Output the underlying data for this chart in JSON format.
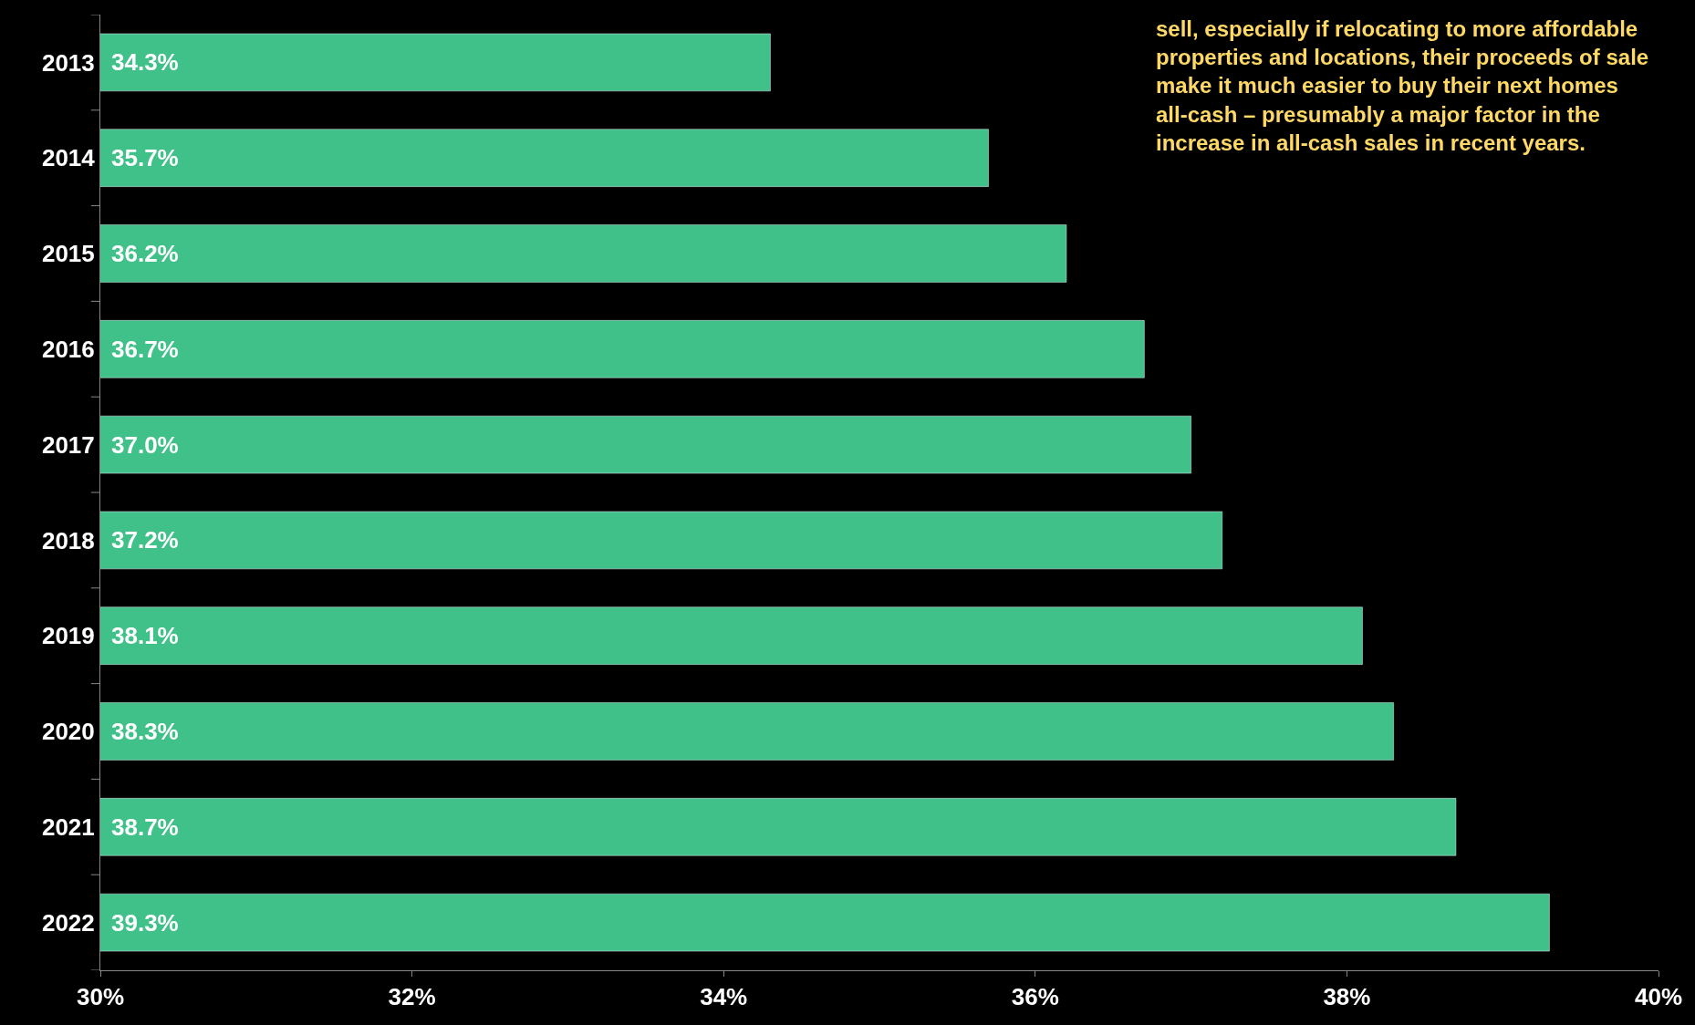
{
  "chart_data": {
    "type": "bar",
    "orientation": "horizontal",
    "categories": [
      "2013",
      "2014",
      "2015",
      "2016",
      "2017",
      "2018",
      "2019",
      "2020",
      "2021",
      "2022"
    ],
    "values": [
      34.3,
      35.7,
      36.2,
      36.7,
      37.0,
      37.2,
      38.1,
      38.3,
      38.7,
      39.3
    ],
    "value_labels": [
      "34.3%",
      "35.7%",
      "36.2%",
      "36.7%",
      "37.0%",
      "37.2%",
      "38.1%",
      "38.3%",
      "38.7%",
      "39.3%"
    ],
    "color": "#40c189",
    "xlim": [
      30,
      40
    ],
    "xticks": [
      {
        "value": 30,
        "label": "30%"
      },
      {
        "value": 32,
        "label": "32%"
      },
      {
        "value": 34,
        "label": "34%"
      },
      {
        "value": 36,
        "label": "36%"
      },
      {
        "value": 38,
        "label": "38%"
      },
      {
        "value": 40,
        "label": "40%"
      }
    ],
    "grid": false,
    "legend": false,
    "annotations": [
      "sell, especially if relocating to more affordable\nproperties and locations, their proceeds of sale\nmake it much easier to buy their next homes\nall-cash – presumably a major factor in the\nincrease in all-cash sales in recent years."
    ]
  }
}
